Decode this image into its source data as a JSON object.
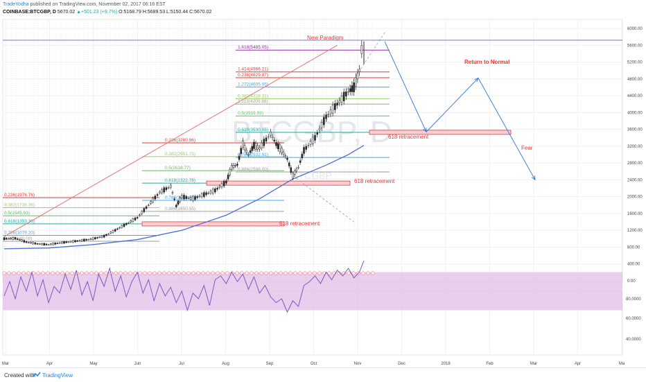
{
  "header": {
    "author": "TradeYodha",
    "published": " published on TradingView.com, November 02, 2017 06:16 EST",
    "symbol": "COINBASE:BTCGBP, D",
    "last": "5670.02",
    "change": "▲+501.23 (+9.7%)",
    "ohlc": "O:5168.79 H:5689.53 L:5150.44 C:5670.02"
  },
  "watermark": {
    "big": "BTCGBP, D",
    "small": "BTCGBP"
  },
  "footer": {
    "created": "Created with",
    "brand": "TradingView"
  },
  "colors": {
    "fib_red": "#e53935",
    "fib_green": "#66bb6a",
    "fib_olive": "#9ccc65",
    "fib_blue": "#42a5f5",
    "fib_gray": "#9e9e9e",
    "fib_purple": "#9c27b0",
    "fib_teal": "#26a69a",
    "ma": "#4a6fd6",
    "rsi": "#7e57c2",
    "rsi_band": "#e1bee7",
    "projection": "#3f7fd6",
    "annotation": "#e53935",
    "trendline": "#e57373"
  },
  "chart_data": {
    "type": "line",
    "price_axis": {
      "ticks": [
        "6000.00",
        "5600.00",
        "5200.00",
        "4800.00",
        "4400.00",
        "4000.00",
        "3600.00",
        "3200.00",
        "2800.00",
        "2400.00",
        "2000.00",
        "1600.00",
        "1200.00",
        "800.00",
        "400.00",
        "0.00"
      ],
      "ylim": [
        0,
        6000
      ]
    },
    "rsi_axis": {
      "ticks": [
        "80.0000",
        "60.0000",
        "40.0000"
      ],
      "ylim": [
        20,
        100
      ],
      "band": [
        30,
        70
      ]
    },
    "x_ticks": [
      "Mar",
      "Apr",
      "May",
      "Jun",
      "Jul",
      "Aug",
      "Sep",
      "Oct",
      "Nov",
      "Dec",
      "2018",
      "Feb",
      "Mar",
      "Apr",
      "Ma"
    ],
    "price_path": [
      [
        0,
        1000
      ],
      [
        10,
        1010
      ],
      [
        20,
        920
      ],
      [
        30,
        880
      ],
      [
        40,
        860
      ],
      [
        50,
        900
      ],
      [
        60,
        930
      ],
      [
        70,
        960
      ],
      [
        80,
        1000
      ],
      [
        90,
        1060
      ],
      [
        100,
        1200
      ],
      [
        110,
        1350
      ],
      [
        120,
        1500
      ],
      [
        130,
        1800
      ],
      [
        140,
        2100
      ],
      [
        150,
        2250
      ],
      [
        155,
        1780
      ],
      [
        160,
        2000
      ],
      [
        170,
        1950
      ],
      [
        180,
        2050
      ],
      [
        190,
        2150
      ],
      [
        200,
        2350
      ],
      [
        205,
        2700
      ],
      [
        210,
        2760
      ],
      [
        215,
        3250
      ],
      [
        220,
        3000
      ],
      [
        225,
        3220
      ],
      [
        230,
        3150
      ],
      [
        240,
        3500
      ],
      [
        245,
        3250
      ],
      [
        250,
        3100
      ],
      [
        255,
        2900
      ],
      [
        260,
        2500
      ],
      [
        265,
        2700
      ],
      [
        270,
        3100
      ],
      [
        280,
        3400
      ],
      [
        290,
        3900
      ],
      [
        300,
        4200
      ],
      [
        310,
        4500
      ],
      [
        315,
        4600
      ],
      [
        320,
        5000
      ],
      [
        322,
        5500
      ],
      [
        324,
        5670
      ]
    ],
    "moving_average": [
      [
        0,
        760
      ],
      [
        40,
        780
      ],
      [
        80,
        860
      ],
      [
        120,
        980
      ],
      [
        160,
        1200
      ],
      [
        200,
        1560
      ],
      [
        230,
        1950
      ],
      [
        260,
        2420
      ],
      [
        290,
        2750
      ],
      [
        310,
        3000
      ],
      [
        324,
        3220
      ]
    ],
    "rsi": [
      [
        0,
        45
      ],
      [
        5,
        60
      ],
      [
        10,
        42
      ],
      [
        15,
        65
      ],
      [
        20,
        50
      ],
      [
        25,
        70
      ],
      [
        30,
        45
      ],
      [
        35,
        62
      ],
      [
        40,
        38
      ],
      [
        45,
        55
      ],
      [
        50,
        48
      ],
      [
        55,
        68
      ],
      [
        60,
        52
      ],
      [
        65,
        72
      ],
      [
        70,
        46
      ],
      [
        75,
        60
      ],
      [
        80,
        40
      ],
      [
        85,
        68
      ],
      [
        90,
        55
      ],
      [
        95,
        74
      ],
      [
        100,
        50
      ],
      [
        105,
        66
      ],
      [
        110,
        44
      ],
      [
        115,
        60
      ],
      [
        120,
        70
      ],
      [
        125,
        48
      ],
      [
        130,
        62
      ],
      [
        135,
        40
      ],
      [
        140,
        58
      ],
      [
        145,
        45
      ],
      [
        150,
        54
      ],
      [
        155,
        38
      ],
      [
        160,
        50
      ],
      [
        165,
        30
      ],
      [
        170,
        48
      ],
      [
        175,
        42
      ],
      [
        180,
        56
      ],
      [
        185,
        35
      ],
      [
        190,
        62
      ],
      [
        195,
        66
      ],
      [
        200,
        58
      ],
      [
        205,
        70
      ],
      [
        210,
        60
      ],
      [
        215,
        68
      ],
      [
        220,
        52
      ],
      [
        225,
        65
      ],
      [
        230,
        48
      ],
      [
        235,
        56
      ],
      [
        240,
        44
      ],
      [
        245,
        38
      ],
      [
        250,
        42
      ],
      [
        255,
        28
      ],
      [
        260,
        40
      ],
      [
        265,
        34
      ],
      [
        270,
        56
      ],
      [
        275,
        60
      ],
      [
        280,
        66
      ],
      [
        285,
        58
      ],
      [
        290,
        70
      ],
      [
        295,
        62
      ],
      [
        300,
        72
      ],
      [
        305,
        66
      ],
      [
        310,
        74
      ],
      [
        315,
        64
      ],
      [
        320,
        70
      ],
      [
        324,
        82
      ]
    ],
    "fib_groups": [
      {
        "color": "red",
        "price": 1976.76,
        "label": "0.236(1976.76)"
      },
      {
        "color": "olive",
        "price": 1738.36,
        "label": "0.382(1738.36)"
      },
      {
        "color": "green",
        "price": 1545.93,
        "label": "0.5(1545.93)"
      },
      {
        "color": "teal",
        "price": 1353.36,
        "label": "0.618(1353.36)"
      },
      {
        "color": "blue",
        "price": 1079.2,
        "label": "0.786(1079.20)"
      },
      {
        "color": "gray",
        "price": 940.0,
        "label": "0.886(940.00)"
      },
      {
        "color": "red",
        "price": 3280.96,
        "label": "0.236(3280.96)"
      },
      {
        "color": "olive",
        "price": 2951.73,
        "label": "0.382(2951.73)"
      },
      {
        "color": "green",
        "price": 2618.77,
        "label": "0.5(2618.77)"
      },
      {
        "color": "teal",
        "price": 2322.78,
        "label": "0.618(2322.78)"
      },
      {
        "color": "blue",
        "price": 1912.55,
        "label": "0.786(1912.55)"
      },
      {
        "color": "gray",
        "price": 1650.55,
        "label": "0.886(1650.55)"
      },
      {
        "color": "purple",
        "price": 5485.05,
        "label": "1.618(5485.05)"
      },
      {
        "color": "red",
        "price": 4966.21,
        "label": "1.414(4966.21)"
      },
      {
        "color": "red",
        "price": 4829.87,
        "label": "0.236(4829.87)"
      },
      {
        "color": "blue",
        "price": 4605.05,
        "label": "1.272(4605.05)"
      },
      {
        "color": "olive",
        "price": 4328.31,
        "label": "0.382(4328.31)"
      },
      {
        "color": "gray",
        "price": 4200.68,
        "label": "1.113(4200.68)"
      },
      {
        "color": "green",
        "price": 3919.93,
        "label": "0.5(3919.93)"
      },
      {
        "color": "teal",
        "price": 3530.05,
        "label": "0.618(3530.05)"
      },
      {
        "color": "blue",
        "price": 2932.91,
        "label": "0.786(2932.91)"
      },
      {
        "color": "gray",
        "price": 2588.0,
        "label": "0.886(2588.00)"
      }
    ],
    "annotations": [
      {
        "text": "New Paradigm",
        "price": 5720
      },
      {
        "text": "Return to Normal",
        "price": 5200
      },
      {
        "text": "618 retracement",
        "price": 3400
      },
      {
        "text": "Fear",
        "price": 3160
      },
      {
        "text": "618 retracement",
        "price": 2330
      },
      {
        "text": "618 retracement",
        "price": 1370
      }
    ],
    "retracement_zones": [
      3530,
      2322,
      1353
    ],
    "projection": [
      [
        324,
        5670
      ],
      [
        363,
        3540
      ],
      [
        410,
        4820
      ],
      [
        480,
        2400
      ]
    ]
  }
}
